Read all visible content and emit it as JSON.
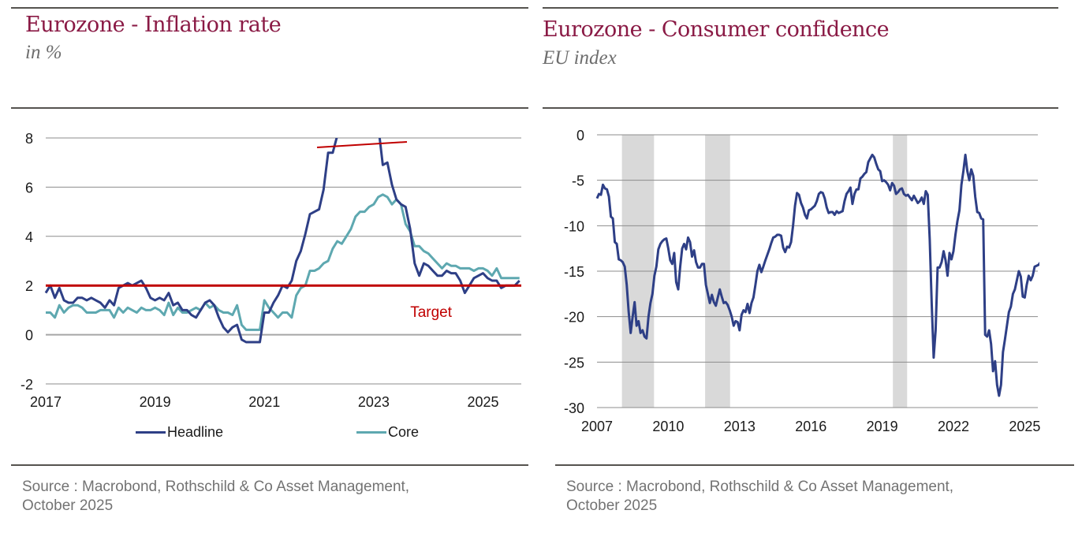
{
  "panels": [
    {
      "title": "Eurozone - Inflation rate",
      "subtitle": "in %",
      "source_line1": "Source : Macrobond, Rothschild & Co Asset Management,",
      "source_line2": "October 2025"
    },
    {
      "title": "Eurozone - Consumer confidence",
      "subtitle": "EU index",
      "source_line1": "Source : Macrobond, Rothschild & Co Asset Management,",
      "source_line2": "October 2025"
    }
  ],
  "colors": {
    "title": "#8a1a45",
    "headline": "#2e3f86",
    "core": "#5ea8b0",
    "target": "#c00000",
    "grid": "#8c8c8c",
    "recession_band": "#d9d9d9",
    "series": "#2e3f86"
  },
  "chart_data": [
    {
      "type": "line",
      "title": "Eurozone - Inflation rate",
      "ylabel": "in %",
      "xlabel": "",
      "x_start": "2017-01",
      "frequency": "monthly",
      "xlim": [
        2017.0,
        2025.7
      ],
      "ylim": [
        -2,
        8
      ],
      "yticks": [
        -2,
        0,
        2,
        4,
        6,
        8
      ],
      "xticks": [
        2017,
        2019,
        2021,
        2023,
        2025
      ],
      "xtick_labels": [
        "2017",
        "2019",
        "2021",
        "2023",
        "2025"
      ],
      "ytick_labels": [
        "-2",
        "0",
        "2",
        "4",
        "6",
        "8"
      ],
      "grid": true,
      "legend_position": "bottom",
      "axis_break_note": "y-axis clipped at 8 (headline peak above 8 marked with a break line)",
      "series": [
        {
          "name": "Headline",
          "values": [
            1.7,
            2.0,
            1.5,
            1.9,
            1.4,
            1.3,
            1.3,
            1.5,
            1.5,
            1.4,
            1.5,
            1.4,
            1.3,
            1.1,
            1.4,
            1.2,
            1.9,
            2.0,
            2.1,
            2.0,
            2.1,
            2.2,
            1.9,
            1.5,
            1.4,
            1.5,
            1.4,
            1.7,
            1.2,
            1.3,
            1.0,
            1.0,
            0.8,
            0.7,
            1.0,
            1.3,
            1.4,
            1.2,
            0.7,
            0.3,
            0.1,
            0.3,
            0.4,
            -0.2,
            -0.3,
            -0.3,
            -0.3,
            -0.3,
            0.9,
            0.9,
            1.3,
            1.6,
            2.0,
            1.9,
            2.2,
            3.0,
            3.4,
            4.1,
            4.9,
            5.0,
            5.1,
            5.9,
            7.4,
            7.4,
            8.1,
            8.6,
            8.9,
            9.1,
            9.9,
            10.6,
            10.1,
            9.2,
            8.6,
            8.5,
            6.9,
            7.0,
            6.1,
            5.5,
            5.3,
            5.2,
            4.3,
            2.9,
            2.4,
            2.9,
            2.8,
            2.6,
            2.4,
            2.4,
            2.6,
            2.5,
            2.5,
            2.2,
            1.7,
            2.0,
            2.3,
            2.4,
            2.5,
            2.3,
            2.2,
            2.2,
            1.9,
            2.0,
            2.0,
            2.0,
            2.2
          ],
          "display_clipped_above": 8
        },
        {
          "name": "Core",
          "values": [
            0.9,
            0.9,
            0.7,
            1.2,
            0.9,
            1.1,
            1.2,
            1.2,
            1.1,
            0.9,
            0.9,
            0.9,
            1.0,
            1.0,
            1.0,
            0.7,
            1.1,
            0.9,
            1.1,
            1.0,
            0.9,
            1.1,
            1.0,
            1.0,
            1.1,
            1.0,
            0.8,
            1.3,
            0.8,
            1.1,
            0.9,
            0.9,
            1.0,
            1.1,
            1.0,
            1.3,
            1.1,
            1.2,
            1.0,
            0.9,
            0.9,
            0.8,
            1.2,
            0.4,
            0.2,
            0.2,
            0.2,
            0.2,
            1.4,
            1.1,
            0.9,
            0.7,
            0.9,
            0.9,
            0.7,
            1.6,
            1.9,
            2.0,
            2.6,
            2.6,
            2.7,
            2.9,
            3.0,
            3.5,
            3.8,
            3.7,
            4.0,
            4.3,
            4.8,
            5.0,
            5.0,
            5.2,
            5.3,
            5.6,
            5.7,
            5.6,
            5.3,
            5.5,
            5.3,
            4.5,
            4.2,
            3.6,
            3.6,
            3.4,
            3.3,
            3.1,
            2.9,
            2.7,
            2.9,
            2.8,
            2.8,
            2.7,
            2.7,
            2.7,
            2.6,
            2.7,
            2.7,
            2.6,
            2.4,
            2.7,
            2.3,
            2.3,
            2.3,
            2.3,
            2.3
          ]
        },
        {
          "name": "Target",
          "constant": 2.0,
          "label": "Target"
        }
      ]
    },
    {
      "type": "line",
      "title": "Eurozone - Consumer confidence",
      "ylabel": "EU index",
      "xlabel": "",
      "x_start": "2007-01",
      "frequency": "monthly",
      "xlim": [
        2007.0,
        2025.55
      ],
      "ylim": [
        -30,
        0
      ],
      "yticks": [
        -30,
        -25,
        -20,
        -15,
        -10,
        -5,
        0
      ],
      "ytick_labels": [
        "-30",
        "-25",
        "-20",
        "-15",
        "-10",
        "-5",
        "0"
      ],
      "xticks": [
        2007,
        2010,
        2013,
        2016,
        2019,
        2022,
        2025
      ],
      "xtick_labels": [
        "2007",
        "2010",
        "2013",
        "2016",
        "2019",
        "2022",
        "2025"
      ],
      "grid": true,
      "legend_position": "none",
      "shaded_periods": [
        [
          2008.05,
          2009.4
        ],
        [
          2011.55,
          2012.6
        ],
        [
          2019.45,
          2020.05
        ]
      ],
      "series": [
        {
          "name": "Consumer confidence",
          "values": [
            -7.0,
            -6.5,
            -6.6,
            -5.5,
            -5.9,
            -6.0,
            -6.8,
            -9.0,
            -9.2,
            -11.8,
            -12.0,
            -13.7,
            -13.8,
            -14.0,
            -14.5,
            -16.5,
            -19.5,
            -21.8,
            -20.0,
            -18.4,
            -21.0,
            -20.5,
            -21.8,
            -21.5,
            -22.2,
            -22.4,
            -20.0,
            -18.5,
            -17.5,
            -15.5,
            -14.5,
            -12.6,
            -12.0,
            -11.7,
            -11.5,
            -11.4,
            -12.5,
            -13.8,
            -14.2,
            -13.0,
            -16.2,
            -17.0,
            -14.5,
            -12.5,
            -12.0,
            -12.6,
            -11.3,
            -11.8,
            -13.4,
            -12.7,
            -14.0,
            -14.6,
            -14.6,
            -14.2,
            -14.2,
            -16.5,
            -17.5,
            -18.5,
            -17.6,
            -18.4,
            -18.8,
            -17.9,
            -17.0,
            -17.8,
            -18.5,
            -18.4,
            -18.7,
            -19.3,
            -20.0,
            -21.0,
            -20.5,
            -20.6,
            -21.5,
            -19.8,
            -19.3,
            -19.5,
            -18.6,
            -19.6,
            -18.5,
            -17.9,
            -16.5,
            -15.0,
            -14.3,
            -15.1,
            -14.5,
            -13.8,
            -13.2,
            -12.6,
            -11.9,
            -11.3,
            -11.2,
            -11.0,
            -11.0,
            -11.1,
            -12.4,
            -12.9,
            -12.3,
            -12.4,
            -11.8,
            -10.0,
            -7.8,
            -6.4,
            -6.6,
            -7.5,
            -8.0,
            -8.8,
            -9.2,
            -8.3,
            -8.2,
            -8.0,
            -7.8,
            -7.3,
            -6.5,
            -6.3,
            -6.4,
            -7.0,
            -8.0,
            -8.6,
            -8.5,
            -8.5,
            -8.8,
            -8.4,
            -8.6,
            -8.5,
            -8.4,
            -7.3,
            -6.5,
            -6.2,
            -5.8,
            -7.6,
            -6.5,
            -6.0,
            -6.0,
            -4.8,
            -4.6,
            -4.3,
            -4.1,
            -3.0,
            -2.6,
            -2.2,
            -2.5,
            -3.2,
            -3.8,
            -4.0,
            -5.1,
            -5.0,
            -5.2,
            -5.5,
            -6.1,
            -5.3,
            -5.6,
            -6.5,
            -6.3,
            -6.0,
            -5.9,
            -6.5,
            -6.7,
            -6.6,
            -6.9,
            -7.2,
            -6.7,
            -7.1,
            -7.5,
            -7.3,
            -6.9,
            -7.6,
            -6.2,
            -6.6,
            -11.5,
            -18.5,
            -24.5,
            -21.5,
            -14.6,
            -14.6,
            -14.0,
            -12.8,
            -13.8,
            -15.5,
            -13.0,
            -13.7,
            -12.8,
            -11.0,
            -9.5,
            -8.3,
            -5.5,
            -4.0,
            -2.2,
            -4.0,
            -5.0,
            -3.8,
            -4.5,
            -6.8,
            -8.5,
            -8.6,
            -9.2,
            -9.3,
            -22.0,
            -22.2,
            -21.5,
            -23.0,
            -26.0,
            -24.9,
            -27.5,
            -28.7,
            -27.5,
            -23.9,
            -22.5,
            -21.0,
            -19.5,
            -18.9,
            -17.5,
            -17.0,
            -16.0,
            -15.0,
            -15.6,
            -17.8,
            -17.9,
            -16.5,
            -15.5,
            -16.0,
            -15.5,
            -14.5,
            -14.4,
            -14.3,
            -14.0,
            -13.7,
            -12.8,
            -13.0,
            -12.9,
            -12.4,
            -13.8,
            -14.2,
            -14.6,
            -14.3,
            -14.9,
            -16.6,
            -14.5,
            -14.6,
            -14.0,
            -15.3,
            -14.7
          ]
        }
      ]
    }
  ]
}
